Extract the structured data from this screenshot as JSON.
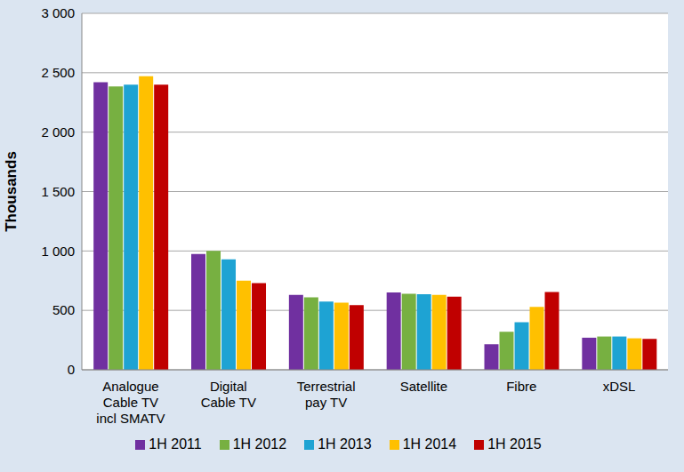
{
  "chart_data": {
    "type": "bar",
    "y_label": "Thousands",
    "categories": [
      "Analogue Cable TV incl SMATV",
      "Digital Cable TV",
      "Terrestrial pay TV",
      "Satellite",
      "Fibre",
      "xDSL"
    ],
    "series": [
      {
        "name": "1H 2011",
        "color": "#7030a0",
        "values": [
          2420,
          975,
          630,
          650,
          215,
          270
        ]
      },
      {
        "name": "1H 2012",
        "color": "#77b041",
        "values": [
          2385,
          1000,
          610,
          640,
          320,
          280
        ]
      },
      {
        "name": "1H 2013",
        "color": "#1ea3d3",
        "values": [
          2400,
          930,
          575,
          635,
          400,
          280
        ]
      },
      {
        "name": "1H 2014",
        "color": "#ffc000",
        "values": [
          2470,
          750,
          565,
          630,
          530,
          265
        ]
      },
      {
        "name": "1H 2015",
        "color": "#c00000",
        "values": [
          2400,
          730,
          545,
          615,
          655,
          260
        ]
      }
    ],
    "ylim": [
      0,
      3000
    ],
    "yticks": [
      0,
      500,
      {
        "value": 1000,
        "label": "1 000"
      },
      {
        "value": 1500,
        "label": "1 500"
      },
      {
        "value": 2000,
        "label": "2 000"
      },
      {
        "value": 2500,
        "label": "2 500"
      },
      {
        "value": 3000,
        "label": "3 000"
      }
    ],
    "grid": true,
    "legend": "bottom"
  }
}
